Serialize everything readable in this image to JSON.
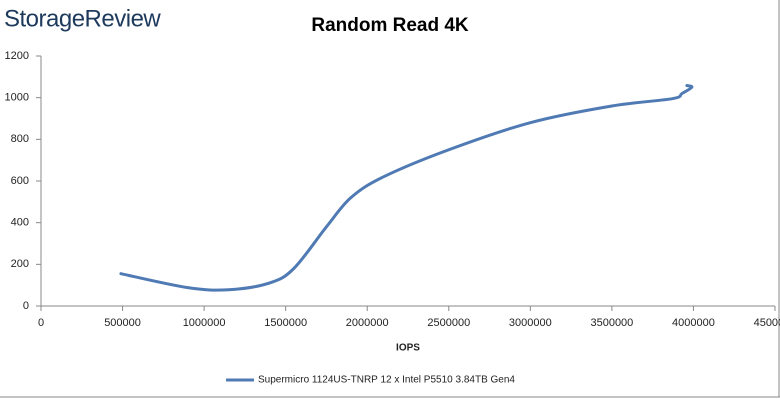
{
  "brand": "StorageReview",
  "chart_data": {
    "type": "line",
    "title": "Random Read 4K",
    "x_label": "IOPS",
    "x": [
      490000,
      900000,
      1150000,
      1400000,
      1550000,
      1750000,
      1900000,
      2100000,
      2500000,
      3000000,
      3500000,
      3870000,
      3930000,
      3990000,
      3960000
    ],
    "series": [
      {
        "name": "Supermicro 1124US-TNRP 12 x Intel P5510 3.84TB Gen4",
        "color": "#4f7ab3",
        "values": [
          155,
          88,
          78,
          110,
          180,
          380,
          520,
          620,
          750,
          880,
          960,
          995,
          1020,
          1050,
          1058
        ]
      }
    ],
    "xlim": [
      0,
      4500000
    ],
    "xticks": [
      0,
      500000,
      1000000,
      1500000,
      2000000,
      2500000,
      3000000,
      3500000,
      4000000,
      4500000
    ],
    "ylim": [
      0,
      1200
    ],
    "yticks": [
      0,
      200,
      400,
      600,
      800,
      1000,
      1200
    ],
    "grid": false,
    "legend": "bottom"
  }
}
